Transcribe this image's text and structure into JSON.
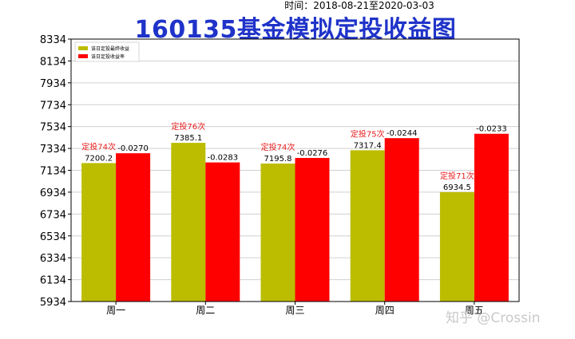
{
  "subtitle": "时间：2018-08-21至2020-03-03",
  "title": "160135基金模拟定投收益图",
  "watermark": "知乎 @Crossin",
  "chart_data": {
    "type": "bar",
    "categories": [
      "周一",
      "周二",
      "周三",
      "周四",
      "周五"
    ],
    "y_ticks": [
      5934,
      6134,
      6334,
      6534,
      6734,
      6934,
      7134,
      7334,
      7534,
      7734,
      7934,
      8134,
      8334
    ],
    "ylim": [
      5934,
      8334
    ],
    "grid": true,
    "legend_position": "top-left",
    "series": [
      {
        "name": "该日定投最终收益",
        "color": "#bcbd00",
        "values": [
          7200.2,
          7385.1,
          7195.8,
          7317.4,
          6934.5
        ],
        "labels": [
          "7200.2",
          "7385.1",
          "7195.8",
          "7317.4",
          "6934.5"
        ]
      },
      {
        "name": "该日定投收益率",
        "color": "#ff0000",
        "values": [
          -0.027,
          -0.0283,
          -0.0276,
          -0.0244,
          -0.0233
        ],
        "bar_heights": [
          7290,
          7206,
          7247,
          7428,
          7468
        ],
        "labels": [
          "-0.0270",
          "-0.0283",
          "-0.0276",
          "-0.0244",
          "-0.0233"
        ]
      }
    ],
    "annotations": [
      "定投74次",
      "定投76次",
      "定投74次",
      "定投75次",
      "定投71次"
    ],
    "annotation_color": "#e81e1e"
  }
}
